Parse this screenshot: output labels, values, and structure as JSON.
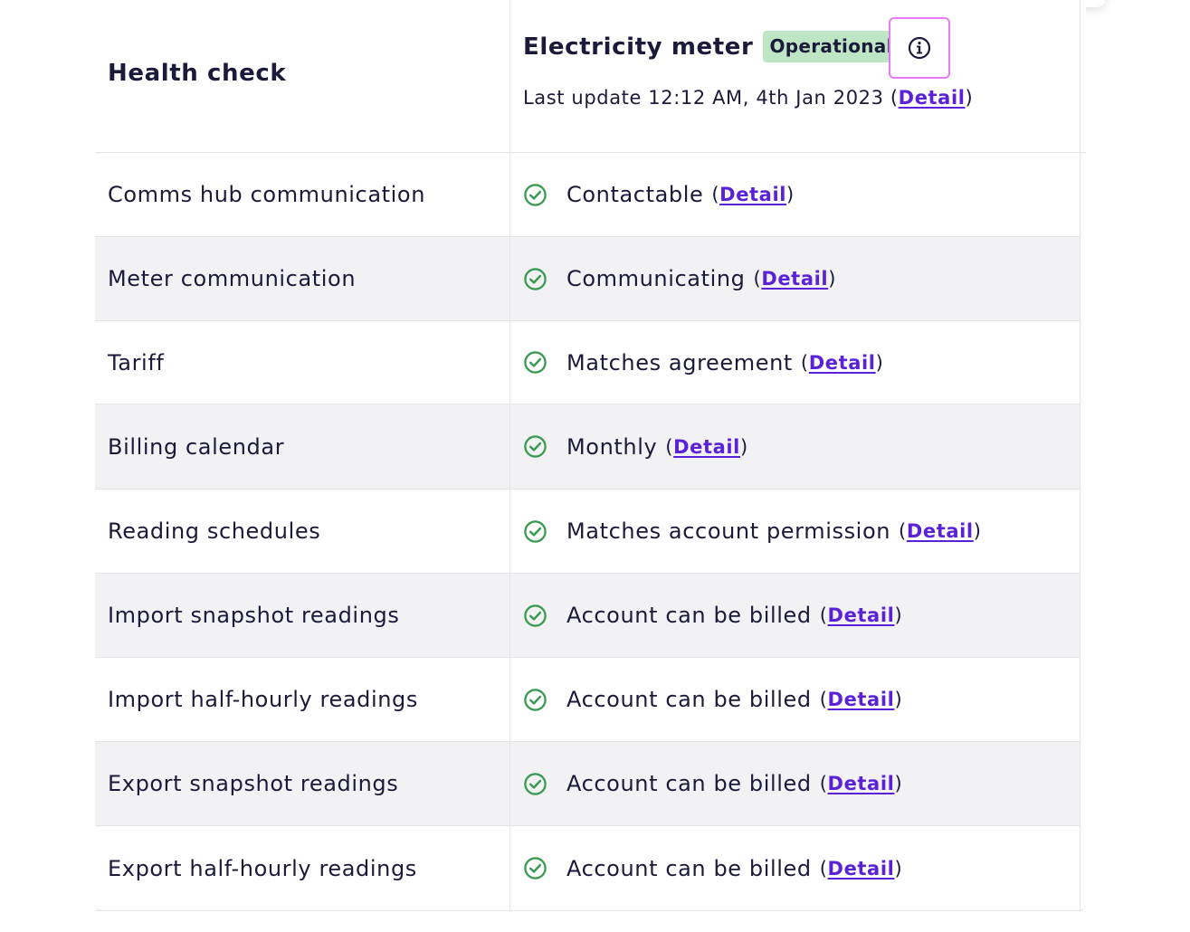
{
  "header": {
    "column_label": "Health check",
    "meter_title": "Electricity meter",
    "status_badge": "Operational",
    "last_update_prefix": "Last update 12:12 AM, 4th Jan 2023 (",
    "last_update_link": "Detail",
    "last_update_suffix": ")"
  },
  "detail_link_label": "Detail",
  "icons": {
    "info": "info-icon",
    "status": "check-circle-icon"
  },
  "colors": {
    "success": "#3a9a52",
    "badge_bg": "#bfe6c4",
    "link": "#5b21d6",
    "focus": "#e879f9",
    "row_shade": "#f2f2f5"
  },
  "rows": [
    {
      "label": "Comms hub communication",
      "status": "Contactable",
      "link": "Detail"
    },
    {
      "label": "Meter communication",
      "status": "Communicating",
      "link": "Detail"
    },
    {
      "label": "Tariff",
      "status": "Matches agreement",
      "link": "Detail"
    },
    {
      "label": "Billing calendar",
      "status": "Monthly",
      "link": "Detail"
    },
    {
      "label": "Reading schedules",
      "status": "Matches account permission",
      "link": "Detail"
    },
    {
      "label": "Import snapshot readings",
      "status": "Account can be billed",
      "link": "Detail"
    },
    {
      "label": "Import half-hourly readings",
      "status": "Account can be billed",
      "link": "Detail"
    },
    {
      "label": "Export snapshot readings",
      "status": "Account can be billed",
      "link": "Detail"
    },
    {
      "label": "Export half-hourly readings",
      "status": "Account can be billed",
      "link": "Detail"
    }
  ]
}
